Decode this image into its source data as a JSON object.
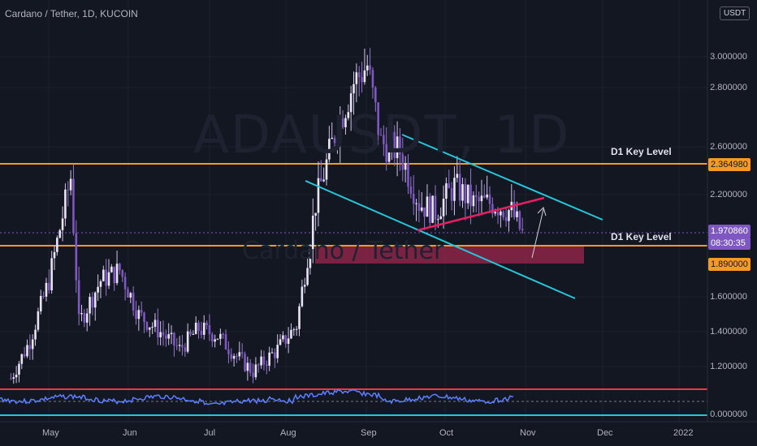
{
  "header": {
    "symbol_title": "Cardano / Tether, 1D, KUCOIN",
    "currency_badge": "USDT",
    "watermark_symbol": "ADAUSDT, 1D",
    "watermark_name": "Cardano / Tether"
  },
  "price_axis": {
    "labels": [
      "3.000000",
      "2.800000",
      "2.600000",
      "2.200000",
      "1.600000",
      "1.400000",
      "1.200000",
      "0.000000"
    ]
  },
  "time_axis": {
    "labels": [
      "May",
      "Jun",
      "Jul",
      "Aug",
      "Sep",
      "Oct",
      "Nov",
      "Dec",
      "2022"
    ]
  },
  "annotations": {
    "upper_key_level": "D1 Key Level",
    "lower_key_level": "D1 Key Level"
  },
  "price_tags": {
    "upper_level": "2.364980",
    "current_price": "1.970860",
    "countdown": "08:30:35",
    "lower_level": "1.890000"
  },
  "colors": {
    "background": "#131722",
    "candle": "#b39ddb",
    "key_level": "#f59a23",
    "channel": "#26c6da",
    "triangle_base": "#e91e63",
    "zone": "#8e2448",
    "current_tag": "#7e57c2",
    "indicator_line": "#5b7fff",
    "indicator_upper": "#f23645",
    "indicator_lower": "#26c6da"
  },
  "chart_data": {
    "type": "candlestick",
    "title": "Cardano / Tether, 1D, KUCOIN",
    "x_range": [
      "2021-04-20",
      "2022-01-05"
    ],
    "ylim": [
      1.05,
      3.2
    ],
    "horizontal_levels": [
      2.36498,
      1.89
    ],
    "support_zone": [
      1.84,
      1.89
    ],
    "current_price": 1.97086,
    "series": [
      {
        "values": [
          [
            "2021-04-24",
            1.13
          ],
          [
            "2021-05-01",
            1.35
          ],
          [
            "2021-05-08",
            1.7
          ],
          [
            "2021-05-16",
            2.3
          ],
          [
            "2021-05-19",
            1.45
          ],
          [
            "2021-05-27",
            1.7
          ],
          [
            "2021-06-03",
            1.76
          ],
          [
            "2021-06-10",
            1.5
          ],
          [
            "2021-06-18",
            1.4
          ],
          [
            "2021-06-25",
            1.3
          ],
          [
            "2021-07-02",
            1.42
          ],
          [
            "2021-07-09",
            1.38
          ],
          [
            "2021-07-16",
            1.26
          ],
          [
            "2021-07-22",
            1.17
          ],
          [
            "2021-07-31",
            1.3
          ],
          [
            "2021-08-07",
            1.44
          ],
          [
            "2021-08-14",
            2.15
          ],
          [
            "2021-08-21",
            2.55
          ],
          [
            "2021-08-28",
            2.85
          ],
          [
            "2021-09-02",
            2.95
          ],
          [
            "2021-09-07",
            2.5
          ],
          [
            "2021-09-14",
            2.45
          ],
          [
            "2021-09-21",
            2.15
          ],
          [
            "2021-09-27",
            2.1
          ],
          [
            "2021-10-04",
            2.25
          ],
          [
            "2021-10-11",
            2.15
          ],
          [
            "2021-10-18",
            2.15
          ],
          [
            "2021-10-25",
            2.1
          ],
          [
            "2021-10-29",
            1.97
          ]
        ]
      }
    ]
  }
}
